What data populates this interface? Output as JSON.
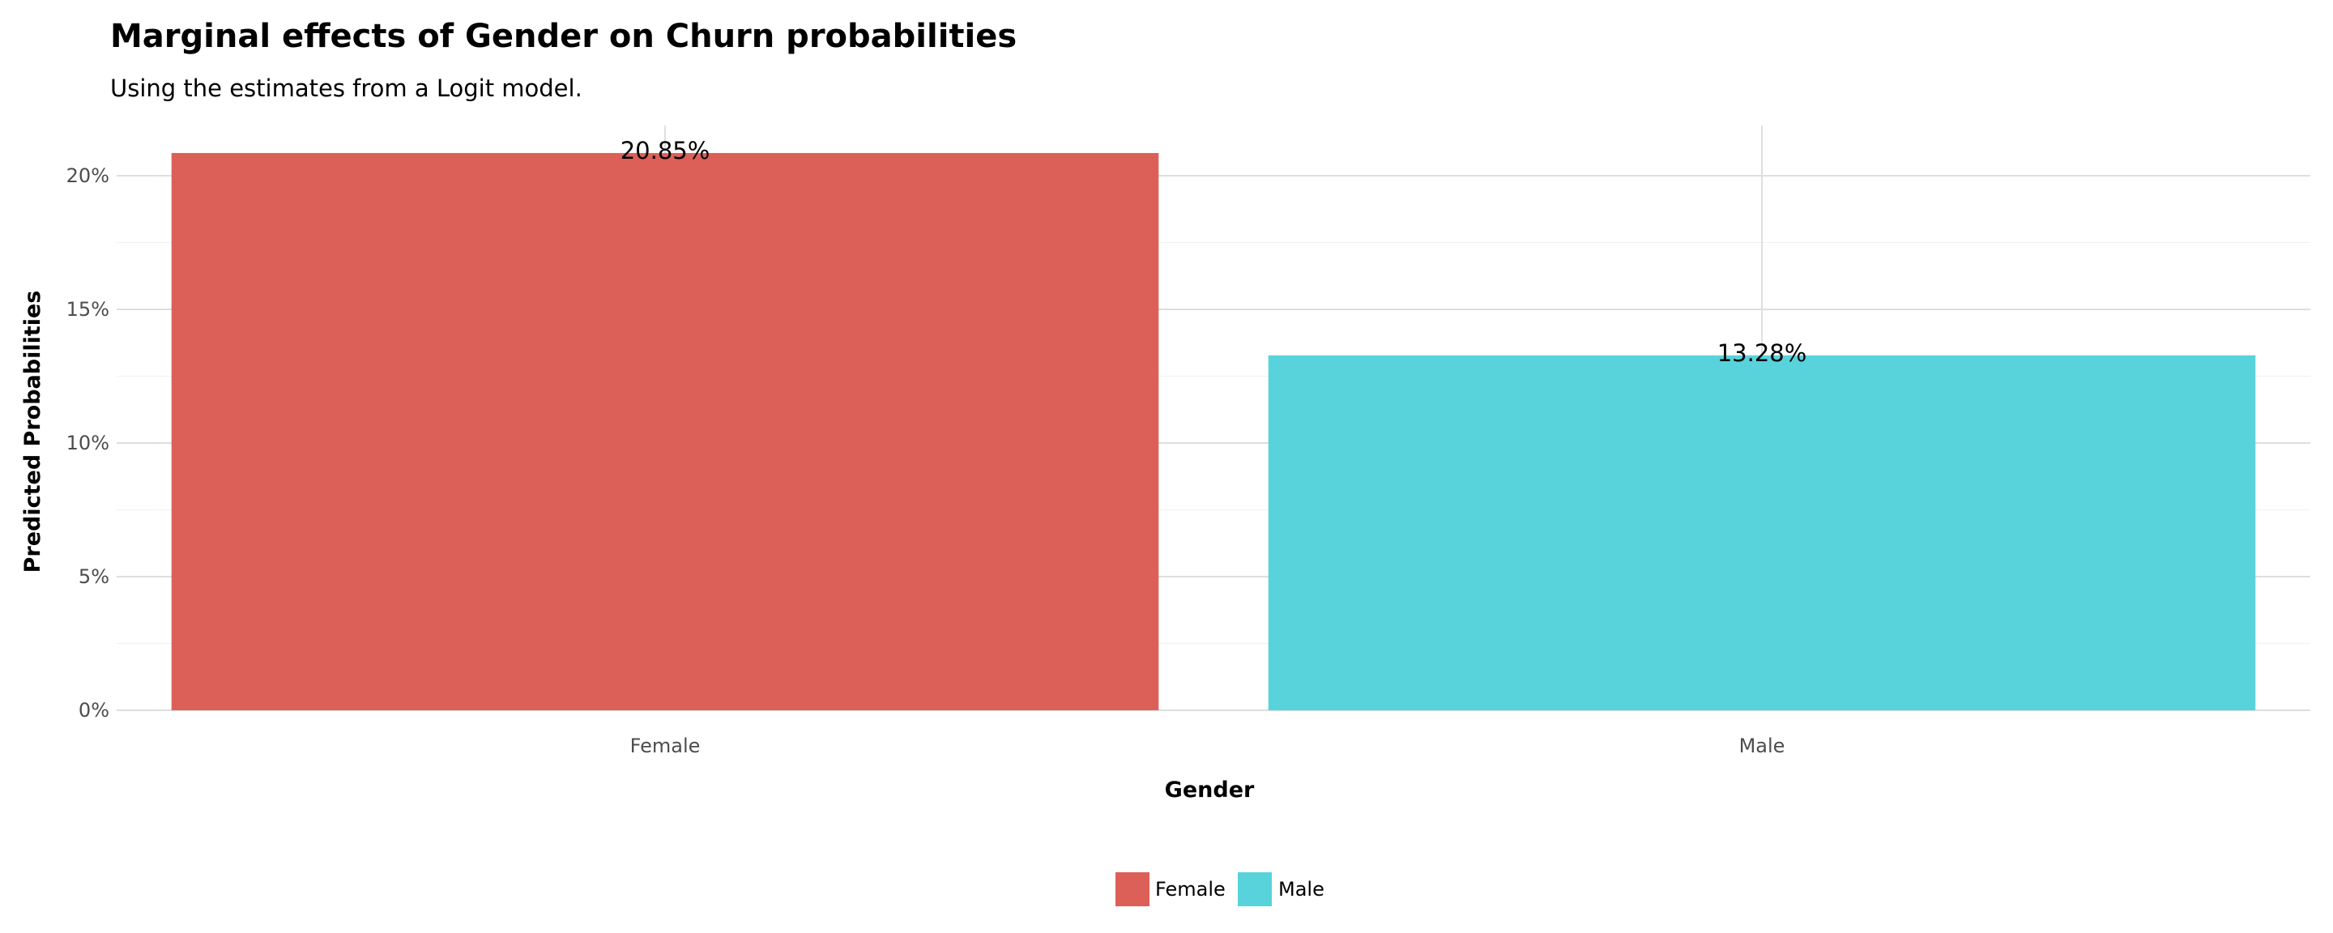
{
  "chart_data": {
    "type": "bar",
    "title": "Marginal effects of Gender on Churn probabilities",
    "subtitle": "Using the estimates from a Logit model.",
    "xlabel": "Gender",
    "ylabel": "Predicted Probabilities",
    "categories": [
      "Female",
      "Male"
    ],
    "values": [
      20.85,
      13.28
    ],
    "value_labels": [
      "20.85%",
      "13.28%"
    ],
    "colors": [
      "#DC6058",
      "#58D3DB"
    ],
    "ylim": [
      0,
      22
    ],
    "yticks": [
      0,
      5,
      10,
      15,
      20
    ],
    "ytick_labels": [
      "0%",
      "5%",
      "10%",
      "15%",
      "20%"
    ],
    "grid": true,
    "legend": {
      "position": "bottom",
      "entries": [
        "Female",
        "Male"
      ]
    }
  }
}
